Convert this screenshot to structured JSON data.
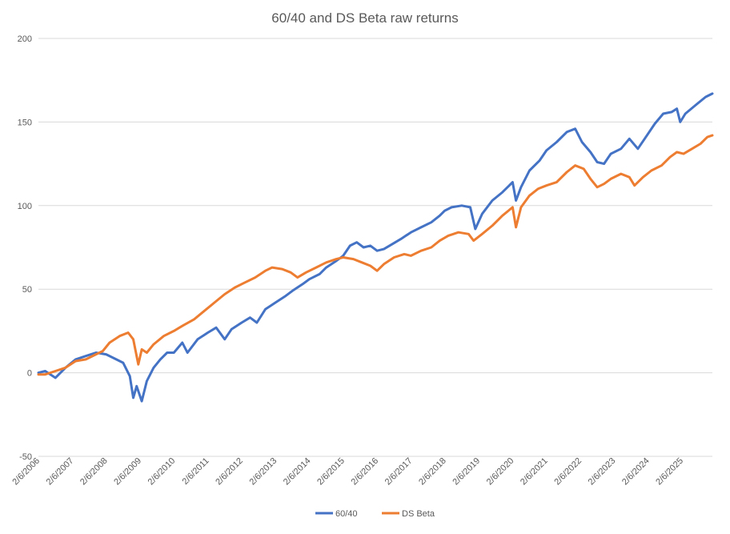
{
  "chart_data": {
    "type": "line",
    "title": "60/40 and DS Beta raw returns",
    "xlabel": "",
    "ylabel": "",
    "ylim": [
      -50,
      200
    ],
    "yticks": [
      -50,
      0,
      50,
      100,
      150,
      200
    ],
    "xticks": [
      "2/6/2006",
      "2/6/2007",
      "2/6/2008",
      "2/6/2009",
      "2/6/2010",
      "2/6/2011",
      "2/6/2012",
      "2/6/2013",
      "2/6/2014",
      "2/6/2015",
      "2/6/2016",
      "2/6/2017",
      "2/6/2018",
      "2/6/2019",
      "2/6/2020",
      "2/6/2021",
      "2/6/2022",
      "2/6/2023",
      "2/6/2024",
      "2/6/2025"
    ],
    "x_range_years": [
      2006.1,
      2026.0
    ],
    "grid": true,
    "legend_position": "bottom",
    "series": [
      {
        "name": "60/40",
        "color": "#4472c4",
        "points": [
          [
            2006.1,
            0
          ],
          [
            2006.3,
            1
          ],
          [
            2006.6,
            -3
          ],
          [
            2006.9,
            3
          ],
          [
            2007.2,
            8
          ],
          [
            2007.5,
            10
          ],
          [
            2007.8,
            12
          ],
          [
            2008.1,
            11
          ],
          [
            2008.4,
            8
          ],
          [
            2008.6,
            6
          ],
          [
            2008.8,
            -2
          ],
          [
            2008.9,
            -15
          ],
          [
            2009.0,
            -8
          ],
          [
            2009.15,
            -17
          ],
          [
            2009.3,
            -5
          ],
          [
            2009.5,
            3
          ],
          [
            2009.7,
            8
          ],
          [
            2009.9,
            12
          ],
          [
            2010.1,
            12
          ],
          [
            2010.35,
            18
          ],
          [
            2010.5,
            12
          ],
          [
            2010.8,
            20
          ],
          [
            2011.1,
            24
          ],
          [
            2011.35,
            27
          ],
          [
            2011.6,
            20
          ],
          [
            2011.8,
            26
          ],
          [
            2012.1,
            30
          ],
          [
            2012.35,
            33
          ],
          [
            2012.55,
            30
          ],
          [
            2012.8,
            38
          ],
          [
            2013.1,
            42
          ],
          [
            2013.4,
            46
          ],
          [
            2013.6,
            49
          ],
          [
            2013.9,
            53
          ],
          [
            2014.1,
            56
          ],
          [
            2014.4,
            59
          ],
          [
            2014.6,
            63
          ],
          [
            2014.9,
            67
          ],
          [
            2015.1,
            70
          ],
          [
            2015.3,
            76
          ],
          [
            2015.5,
            78
          ],
          [
            2015.7,
            75
          ],
          [
            2015.9,
            76
          ],
          [
            2016.1,
            73
          ],
          [
            2016.3,
            74
          ],
          [
            2016.55,
            77
          ],
          [
            2016.8,
            80
          ],
          [
            2017.1,
            84
          ],
          [
            2017.4,
            87
          ],
          [
            2017.7,
            90
          ],
          [
            2017.95,
            94
          ],
          [
            2018.1,
            97
          ],
          [
            2018.3,
            99
          ],
          [
            2018.6,
            100
          ],
          [
            2018.85,
            99
          ],
          [
            2019.0,
            86
          ],
          [
            2019.2,
            95
          ],
          [
            2019.5,
            103
          ],
          [
            2019.8,
            108
          ],
          [
            2020.1,
            114
          ],
          [
            2020.2,
            103
          ],
          [
            2020.35,
            111
          ],
          [
            2020.6,
            121
          ],
          [
            2020.9,
            127
          ],
          [
            2021.1,
            133
          ],
          [
            2021.4,
            138
          ],
          [
            2021.7,
            144
          ],
          [
            2021.95,
            146
          ],
          [
            2022.15,
            138
          ],
          [
            2022.4,
            132
          ],
          [
            2022.6,
            126
          ],
          [
            2022.8,
            125
          ],
          [
            2023.0,
            131
          ],
          [
            2023.3,
            134
          ],
          [
            2023.55,
            140
          ],
          [
            2023.8,
            134
          ],
          [
            2024.0,
            140
          ],
          [
            2024.3,
            149
          ],
          [
            2024.55,
            155
          ],
          [
            2024.8,
            156
          ],
          [
            2024.95,
            158
          ],
          [
            2025.05,
            150
          ],
          [
            2025.2,
            155
          ],
          [
            2025.5,
            160
          ],
          [
            2025.8,
            165
          ],
          [
            2026.0,
            167
          ]
        ]
      },
      {
        "name": "DS Beta",
        "color": "#ed7d31",
        "points": [
          [
            2006.1,
            -1
          ],
          [
            2006.3,
            -1
          ],
          [
            2006.6,
            1
          ],
          [
            2006.9,
            3
          ],
          [
            2007.2,
            7
          ],
          [
            2007.5,
            8
          ],
          [
            2007.8,
            11
          ],
          [
            2008.0,
            13
          ],
          [
            2008.2,
            18
          ],
          [
            2008.5,
            22
          ],
          [
            2008.75,
            24
          ],
          [
            2008.9,
            20
          ],
          [
            2009.05,
            5
          ],
          [
            2009.15,
            14
          ],
          [
            2009.3,
            12
          ],
          [
            2009.5,
            17
          ],
          [
            2009.8,
            22
          ],
          [
            2010.1,
            25
          ],
          [
            2010.35,
            28
          ],
          [
            2010.7,
            32
          ],
          [
            2011.0,
            37
          ],
          [
            2011.3,
            42
          ],
          [
            2011.6,
            47
          ],
          [
            2011.9,
            51
          ],
          [
            2012.2,
            54
          ],
          [
            2012.5,
            57
          ],
          [
            2012.8,
            61
          ],
          [
            2013.0,
            63
          ],
          [
            2013.3,
            62
          ],
          [
            2013.55,
            60
          ],
          [
            2013.75,
            57
          ],
          [
            2014.0,
            60
          ],
          [
            2014.3,
            63
          ],
          [
            2014.6,
            66
          ],
          [
            2014.9,
            68
          ],
          [
            2015.1,
            69
          ],
          [
            2015.4,
            68
          ],
          [
            2015.65,
            66
          ],
          [
            2015.9,
            64
          ],
          [
            2016.1,
            61
          ],
          [
            2016.3,
            65
          ],
          [
            2016.6,
            69
          ],
          [
            2016.9,
            71
          ],
          [
            2017.1,
            70
          ],
          [
            2017.4,
            73
          ],
          [
            2017.7,
            75
          ],
          [
            2017.95,
            79
          ],
          [
            2018.2,
            82
          ],
          [
            2018.5,
            84
          ],
          [
            2018.8,
            83
          ],
          [
            2018.95,
            79
          ],
          [
            2019.2,
            83
          ],
          [
            2019.5,
            88
          ],
          [
            2019.8,
            94
          ],
          [
            2020.1,
            99
          ],
          [
            2020.2,
            87
          ],
          [
            2020.35,
            99
          ],
          [
            2020.6,
            106
          ],
          [
            2020.85,
            110
          ],
          [
            2021.1,
            112
          ],
          [
            2021.4,
            114
          ],
          [
            2021.7,
            120
          ],
          [
            2021.95,
            124
          ],
          [
            2022.2,
            122
          ],
          [
            2022.4,
            116
          ],
          [
            2022.6,
            111
          ],
          [
            2022.8,
            113
          ],
          [
            2023.0,
            116
          ],
          [
            2023.3,
            119
          ],
          [
            2023.55,
            117
          ],
          [
            2023.7,
            112
          ],
          [
            2023.95,
            117
          ],
          [
            2024.2,
            121
          ],
          [
            2024.5,
            124
          ],
          [
            2024.75,
            129
          ],
          [
            2024.95,
            132
          ],
          [
            2025.15,
            131
          ],
          [
            2025.4,
            134
          ],
          [
            2025.65,
            137
          ],
          [
            2025.85,
            141
          ],
          [
            2026.0,
            142
          ]
        ]
      }
    ]
  }
}
